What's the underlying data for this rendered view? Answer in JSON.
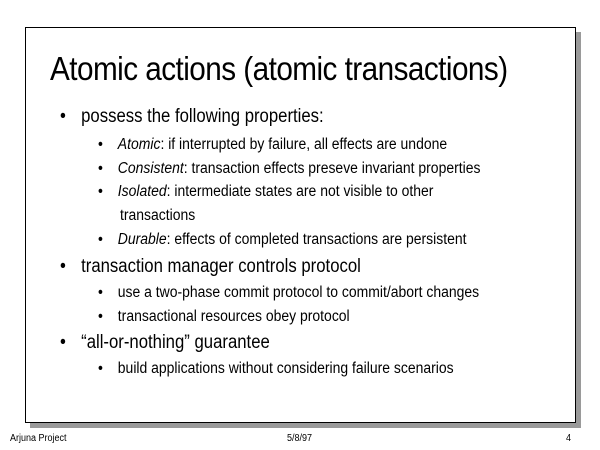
{
  "slide": {
    "title": "Atomic actions (atomic transactions)",
    "bullets": [
      {
        "text": "possess the following properties:",
        "subs": [
          {
            "term": "Atomic",
            "text": ": if interrupted by failure, all effects are undone"
          },
          {
            "term": "Consistent",
            "text": ": transaction effects preseve invariant properties"
          },
          {
            "term": "Isolated",
            "text": ": intermediate states are not visible to other",
            "continuation": "transactions"
          },
          {
            "term": "Durable",
            "text": ": effects of completed transactions are persistent"
          }
        ]
      },
      {
        "text": "transaction manager controls protocol",
        "subs": [
          {
            "text": "use a two-phase commit protocol to commit/abort changes"
          },
          {
            "text": "transactional resources obey protocol"
          }
        ]
      },
      {
        "text": "“all-or-nothing” guarantee",
        "subs": [
          {
            "text": "build applications without considering failure scenarios"
          }
        ]
      }
    ]
  },
  "footer": {
    "left": "Arjuna Project",
    "center": "5/8/97",
    "page": "4"
  }
}
